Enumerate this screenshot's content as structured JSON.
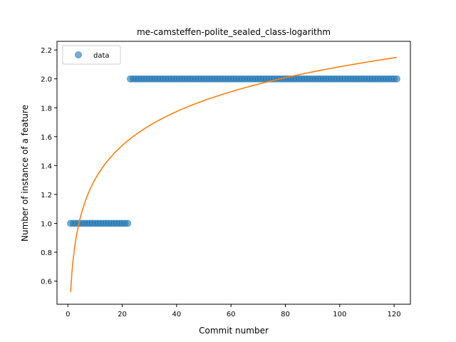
{
  "chart_data": {
    "type": "scatter",
    "title": "me-camsteffen-polite_sealed_class-logarithm",
    "xlabel": "Commit number",
    "ylabel": "Number of instance of a feature",
    "xlim": [
      -4,
      126
    ],
    "ylim": [
      0.44,
      2.26
    ],
    "xticks": [
      0,
      20,
      40,
      60,
      80,
      100,
      120
    ],
    "yticks": [
      0.6,
      0.8,
      1.0,
      1.2,
      1.4,
      1.6,
      1.8,
      2.0,
      2.2
    ],
    "xtick_labels": [
      "0",
      "20",
      "40",
      "60",
      "80",
      "100",
      "120"
    ],
    "ytick_labels": [
      "0.6",
      "0.8",
      "1.0",
      "1.2",
      "1.4",
      "1.6",
      "1.8",
      "2.0",
      "2.2"
    ],
    "legend": {
      "position": "upper-left",
      "entries": [
        "data"
      ]
    },
    "grid": false,
    "series": [
      {
        "name": "data",
        "kind": "scatter",
        "color": "#1f77b4",
        "segments": [
          {
            "x_start": 1,
            "x_end": 22,
            "y": 1.0
          },
          {
            "x_start": 23,
            "x_end": 121,
            "y": 2.0
          }
        ]
      },
      {
        "kind": "line",
        "color": "#ff7f0e",
        "fit": "logarithmic",
        "coefficients": {
          "a": 0.3385,
          "b": 0.525
        },
        "x_range": [
          1,
          121
        ]
      }
    ]
  }
}
